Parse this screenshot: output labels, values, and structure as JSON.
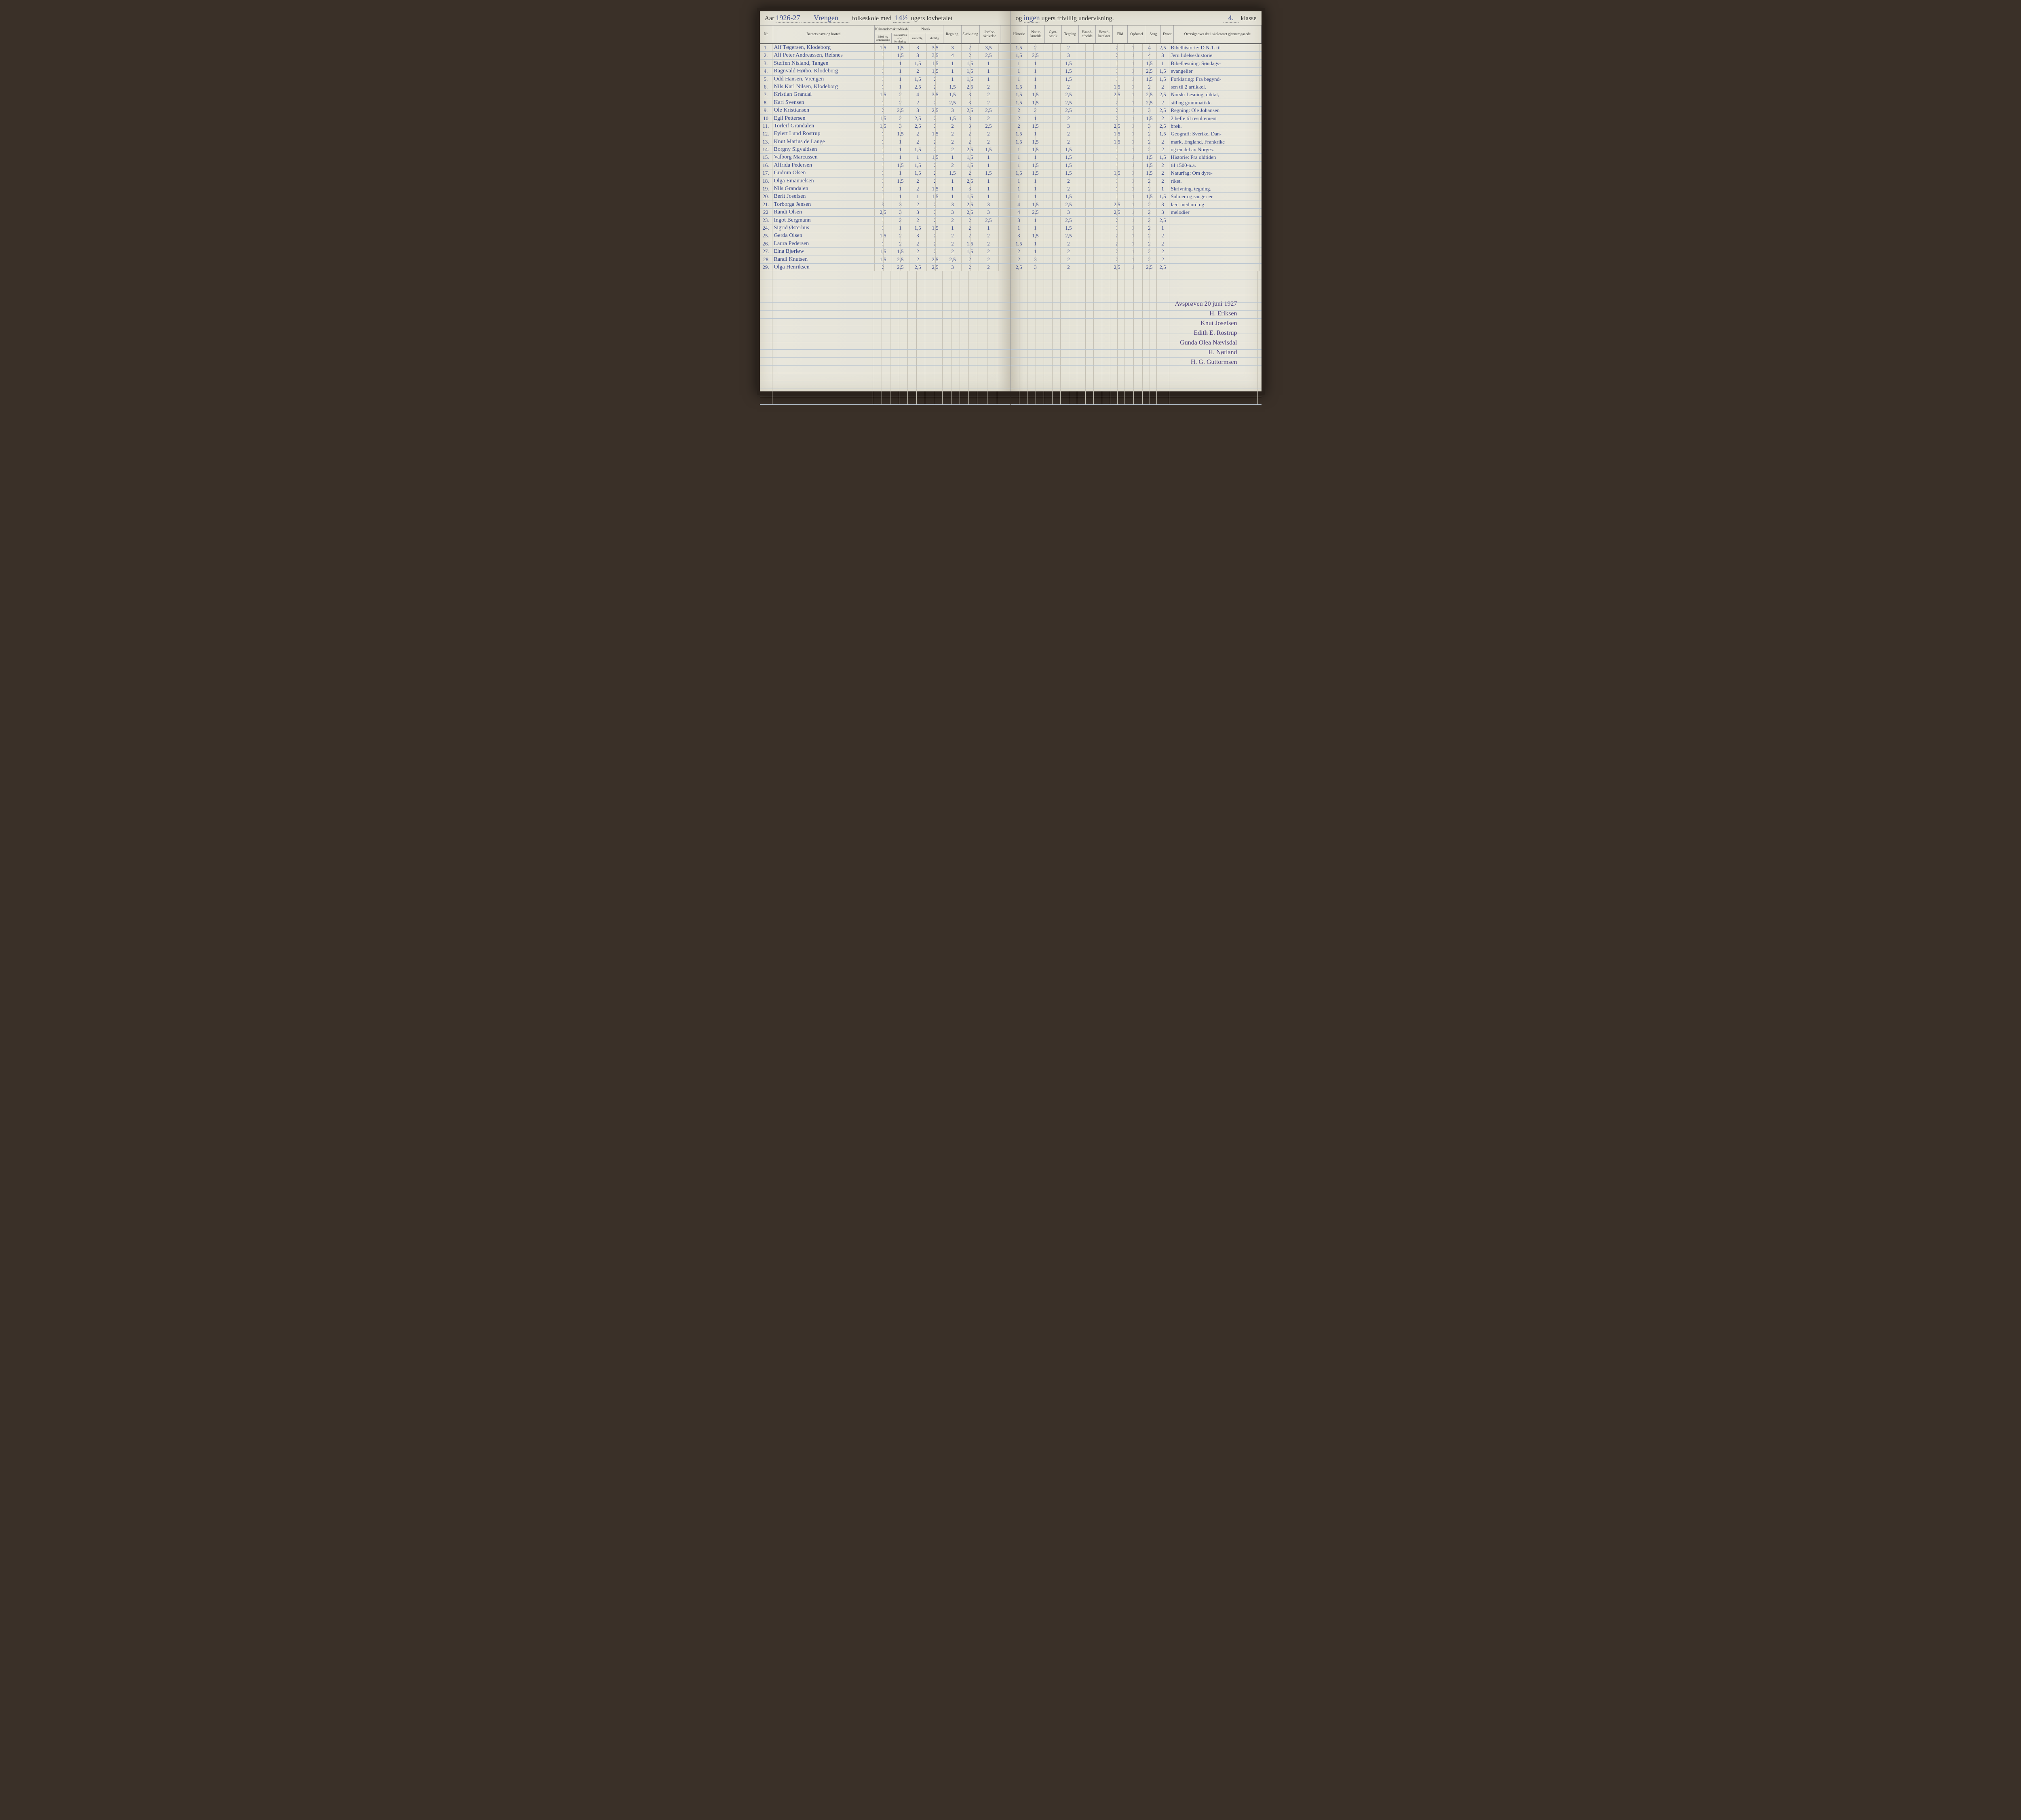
{
  "title": {
    "year": "1926-27",
    "school_name": "Vrengen",
    "printed_1": "Aar",
    "printed_2": "folkeskole med",
    "weeks_mandatory": "14½",
    "printed_3": "ugers lovbefalet",
    "printed_4": "og",
    "weeks_voluntary": "ingen",
    "printed_5": "ugers frivillig undervisning.",
    "class": "4.",
    "printed_6": "klasse"
  },
  "columns_left": {
    "nr": "Nr.",
    "name": "Barnets navn og bosted",
    "kristen_group": "Kristendomskundskab",
    "kristen_a": "Bibel- og kirkehistorie",
    "kristen_b": "Katekismus eller forklaring",
    "norsk_group": "Norsk",
    "norsk_a": "mundtlig",
    "norsk_b": "skriftlig",
    "regning": "Regning",
    "skriv": "Skriv-ning",
    "jord": "Jordbe-skrivelse"
  },
  "columns_right": {
    "historie": "Historie",
    "natur": "Natur-kundsk.",
    "gym": "Gym-nastik",
    "tegning": "Tegning",
    "haand": "Haand-arbeide",
    "hoved": "Hoved-karakter",
    "flid": "Flid",
    "opforsel": "Opførsel",
    "sang": "Sang",
    "evner": "Evner",
    "oversigt": "Oversigt over det i skoleaaret gjennemgaaede"
  },
  "rows": [
    {
      "nr": "1.",
      "name": "Alf Tøgersen, Klodeborg",
      "k1": "1,5",
      "k2": "1,5",
      "n1": "3",
      "n2": "3,5",
      "reg": "3",
      "skr": "2",
      "jord": "3,5",
      "hist": "1,5",
      "nat": "2",
      "gym": "",
      "teg": "2",
      "haa": "",
      "hov": "",
      "flid": "2",
      "opf": "1",
      "sang": "4",
      "evn": "2,5",
      "note": "Bibelhistorie: D.N.T. til"
    },
    {
      "nr": "2.",
      "name": "Alf Peter Andreassen, Refsnes",
      "k1": "1",
      "k2": "1,5",
      "n1": "3",
      "n2": "3,5",
      "reg": "4",
      "skr": "2",
      "jord": "2,5",
      "hist": "1,5",
      "nat": "2,5",
      "gym": "",
      "teg": "3",
      "haa": "",
      "hov": "",
      "flid": "2",
      "opf": "1",
      "sang": "4",
      "evn": "3",
      "note": "Jeru lidelseshistorie"
    },
    {
      "nr": "3.",
      "name": "Steffen Nisland, Tangen",
      "k1": "1",
      "k2": "1",
      "n1": "1,5",
      "n2": "1,5",
      "reg": "1",
      "skr": "1,5",
      "jord": "1",
      "hist": "1",
      "nat": "1",
      "gym": "",
      "teg": "1,5",
      "haa": "",
      "hov": "",
      "flid": "1",
      "opf": "1",
      "sang": "1,5",
      "evn": "1",
      "note": "Bibellæsning: Søndags-"
    },
    {
      "nr": "4.",
      "name": "Ragnvald Høibo, Klodeborg",
      "k1": "1",
      "k2": "1",
      "n1": "2",
      "n2": "1,5",
      "reg": "1",
      "skr": "1,5",
      "jord": "1",
      "hist": "1",
      "nat": "1",
      "gym": "",
      "teg": "1,5",
      "haa": "",
      "hov": "",
      "flid": "1",
      "opf": "1",
      "sang": "2,5",
      "evn": "1,5",
      "note": "evangelier"
    },
    {
      "nr": "5.",
      "name": "Odd Hansen, Vrengen",
      "k1": "1",
      "k2": "1",
      "n1": "1,5",
      "n2": "2",
      "reg": "1",
      "skr": "1,5",
      "jord": "1",
      "hist": "1",
      "nat": "1",
      "gym": "",
      "teg": "1,5",
      "haa": "",
      "hov": "",
      "flid": "1",
      "opf": "1",
      "sang": "1,5",
      "evn": "1,5",
      "note": "Forklaring: Fra begynd-"
    },
    {
      "nr": "6.",
      "name": "Nils Karl Nilsen, Klodeborg",
      "k1": "1",
      "k2": "1",
      "n1": "2,5",
      "n2": "2",
      "reg": "1,5",
      "skr": "2,5",
      "jord": "2",
      "hist": "1,5",
      "nat": "1",
      "gym": "",
      "teg": "2",
      "haa": "",
      "hov": "",
      "flid": "1,5",
      "opf": "1",
      "sang": "2",
      "evn": "2",
      "note": "sen til 2 artikkel."
    },
    {
      "nr": "7.",
      "name": "Kristian Grandal",
      "k1": "1,5",
      "k2": "2",
      "n1": "4",
      "n2": "3,5",
      "reg": "1,5",
      "skr": "3",
      "jord": "2",
      "hist": "1,5",
      "nat": "1,5",
      "gym": "",
      "teg": "2,5",
      "haa": "",
      "hov": "",
      "flid": "2,5",
      "opf": "1",
      "sang": "2,5",
      "evn": "2,5",
      "note": "Norsk: Lesning, diktat,"
    },
    {
      "nr": "8.",
      "name": "Karl Svensen",
      "k1": "1",
      "k2": "2",
      "n1": "2",
      "n2": "2",
      "reg": "2,5",
      "skr": "3",
      "jord": "2",
      "hist": "1,5",
      "nat": "1,5",
      "gym": "",
      "teg": "2,5",
      "haa": "",
      "hov": "",
      "flid": "2",
      "opf": "1",
      "sang": "2,5",
      "evn": "2",
      "note": "stil og grammatikk."
    },
    {
      "nr": "9.",
      "name": "Ole Kristiansen",
      "k1": "2",
      "k2": "2,5",
      "n1": "3",
      "n2": "2,5",
      "reg": "3",
      "skr": "2,5",
      "jord": "2,5",
      "hist": "2",
      "nat": "2",
      "gym": "",
      "teg": "2,5",
      "haa": "",
      "hov": "",
      "flid": "2",
      "opf": "1",
      "sang": "3",
      "evn": "2,5",
      "note": "Regning: Ole Johansen"
    },
    {
      "nr": "10",
      "name": "Egil Pettersen",
      "k1": "1,5",
      "k2": "2",
      "n1": "2,5",
      "n2": "2",
      "reg": "1,5",
      "skr": "3",
      "jord": "2",
      "hist": "2",
      "nat": "1",
      "gym": "",
      "teg": "2",
      "haa": "",
      "hov": "",
      "flid": "2",
      "opf": "1",
      "sang": "1,5",
      "evn": "2",
      "note": "2 hefte til resultement"
    },
    {
      "nr": "11.",
      "name": "Torleif Grandalen",
      "k1": "1,5",
      "k2": "3",
      "n1": "2,5",
      "n2": "3",
      "reg": "2",
      "skr": "3",
      "jord": "2,5",
      "hist": "2",
      "nat": "1,5",
      "gym": "",
      "teg": "3",
      "haa": "",
      "hov": "",
      "flid": "2,5",
      "opf": "1",
      "sang": "3",
      "evn": "2,5",
      "note": "brøk."
    },
    {
      "nr": "12.",
      "name": "Eylert Lund Rostrup",
      "k1": "1",
      "k2": "1,5",
      "n1": "2",
      "n2": "1,5",
      "reg": "2",
      "skr": "2",
      "jord": "2",
      "hist": "1,5",
      "nat": "1",
      "gym": "",
      "teg": "2",
      "haa": "",
      "hov": "",
      "flid": "1,5",
      "opf": "1",
      "sang": "2",
      "evn": "1,5",
      "note": "Geografi: Sverike, Dan-"
    },
    {
      "nr": "13.",
      "name": "Knut Marius de Lange",
      "k1": "1",
      "k2": "1",
      "n1": "2",
      "n2": "2",
      "reg": "2",
      "skr": "2",
      "jord": "2",
      "hist": "1,5",
      "nat": "1,5",
      "gym": "",
      "teg": "2",
      "haa": "",
      "hov": "",
      "flid": "1,5",
      "opf": "1",
      "sang": "2",
      "evn": "2",
      "note": "mark, England, Frankrike"
    },
    {
      "nr": "14.",
      "name": "Borgny Sigvaldsen",
      "k1": "1",
      "k2": "1",
      "n1": "1,5",
      "n2": "2",
      "reg": "2",
      "skr": "2,5",
      "jord": "1,5",
      "hist": "1",
      "nat": "1,5",
      "gym": "",
      "teg": "1,5",
      "haa": "",
      "hov": "",
      "flid": "1",
      "opf": "1",
      "sang": "2",
      "evn": "2",
      "note": "og en del av Norges."
    },
    {
      "nr": "15.",
      "name": "Valborg Marcussen",
      "k1": "1",
      "k2": "1",
      "n1": "1",
      "n2": "1,5",
      "reg": "1",
      "skr": "1,5",
      "jord": "1",
      "hist": "1",
      "nat": "1",
      "gym": "",
      "teg": "1,5",
      "haa": "",
      "hov": "",
      "flid": "1",
      "opf": "1",
      "sang": "1,5",
      "evn": "1,5",
      "note": "Historie: Fra oldtiden"
    },
    {
      "nr": "16.",
      "name": "Alfrida Pedersen",
      "k1": "1",
      "k2": "1,5",
      "n1": "1,5",
      "n2": "2",
      "reg": "2",
      "skr": "1,5",
      "jord": "1",
      "hist": "1",
      "nat": "1,5",
      "gym": "",
      "teg": "1,5",
      "haa": "",
      "hov": "",
      "flid": "1",
      "opf": "1",
      "sang": "1,5",
      "evn": "2",
      "note": "til 1500-a.a."
    },
    {
      "nr": "17.",
      "name": "Gudrun Olsen",
      "k1": "1",
      "k2": "1",
      "n1": "1,5",
      "n2": "2",
      "reg": "1,5",
      "skr": "2",
      "jord": "1,5",
      "hist": "1,5",
      "nat": "1,5",
      "gym": "",
      "teg": "1,5",
      "haa": "",
      "hov": "",
      "flid": "1,5",
      "opf": "1",
      "sang": "1,5",
      "evn": "2",
      "note": "Naturfag: Om dyre-"
    },
    {
      "nr": "18.",
      "name": "Olga Emanuelsen",
      "k1": "1",
      "k2": "1,5",
      "n1": "2",
      "n2": "2",
      "reg": "1",
      "skr": "2,5",
      "jord": "1",
      "hist": "1",
      "nat": "1",
      "gym": "",
      "teg": "2",
      "haa": "",
      "hov": "",
      "flid": "1",
      "opf": "1",
      "sang": "2",
      "evn": "2",
      "note": "riket."
    },
    {
      "nr": "19.",
      "name": "Nils Grandalen",
      "k1": "1",
      "k2": "1",
      "n1": "2",
      "n2": "1,5",
      "reg": "1",
      "skr": "3",
      "jord": "1",
      "hist": "1",
      "nat": "1",
      "gym": "",
      "teg": "2",
      "haa": "",
      "hov": "",
      "flid": "1",
      "opf": "1",
      "sang": "2",
      "evn": "1",
      "note": "Skrivning, tegning."
    },
    {
      "nr": "20.",
      "name": "Berit Josefsen",
      "k1": "1",
      "k2": "1",
      "n1": "1",
      "n2": "1,5",
      "reg": "1",
      "skr": "1,5",
      "jord": "1",
      "hist": "1",
      "nat": "1",
      "gym": "",
      "teg": "1,5",
      "haa": "",
      "hov": "",
      "flid": "1",
      "opf": "1",
      "sang": "1,5",
      "evn": "1,5",
      "note": "Salmer og sanger er"
    },
    {
      "nr": "21.",
      "name": "Torborga Jensen",
      "k1": "3",
      "k2": "3",
      "n1": "2",
      "n2": "2",
      "reg": "3",
      "skr": "2,5",
      "jord": "3",
      "hist": "4",
      "nat": "1,5",
      "gym": "",
      "teg": "2,5",
      "haa": "",
      "hov": "",
      "flid": "2,5",
      "opf": "1",
      "sang": "2",
      "evn": "3",
      "note": "lært med ord og"
    },
    {
      "nr": "22",
      "name": "Randi Olsen",
      "k1": "2,5",
      "k2": "3",
      "n1": "3",
      "n2": "3",
      "reg": "3",
      "skr": "2,5",
      "jord": "3",
      "hist": "4",
      "nat": "2,5",
      "gym": "",
      "teg": "3",
      "haa": "",
      "hov": "",
      "flid": "2,5",
      "opf": "1",
      "sang": "2",
      "evn": "3",
      "note": "melodier"
    },
    {
      "nr": "23.",
      "name": "Ingot Bergmann",
      "k1": "1",
      "k2": "2",
      "n1": "2",
      "n2": "2",
      "reg": "2",
      "skr": "2",
      "jord": "2,5",
      "hist": "3",
      "nat": "1",
      "gym": "",
      "teg": "2,5",
      "haa": "",
      "hov": "",
      "flid": "2",
      "opf": "1",
      "sang": "2",
      "evn": "2,5",
      "note": ""
    },
    {
      "nr": "24.",
      "name": "Sigrid Østerhus",
      "k1": "1",
      "k2": "1",
      "n1": "1,5",
      "n2": "1,5",
      "reg": "1",
      "skr": "2",
      "jord": "1",
      "hist": "1",
      "nat": "1",
      "gym": "",
      "teg": "1,5",
      "haa": "",
      "hov": "",
      "flid": "1",
      "opf": "1",
      "sang": "2",
      "evn": "1",
      "note": ""
    },
    {
      "nr": "25.",
      "name": "Gerda Olsen",
      "k1": "1,5",
      "k2": "2",
      "n1": "3",
      "n2": "2",
      "reg": "2",
      "skr": "2",
      "jord": "2",
      "hist": "3",
      "nat": "1,5",
      "gym": "",
      "teg": "2,5",
      "haa": "",
      "hov": "",
      "flid": "2",
      "opf": "1",
      "sang": "2",
      "evn": "2",
      "note": ""
    },
    {
      "nr": "26.",
      "name": "Laura Pedersen",
      "k1": "1",
      "k2": "2",
      "n1": "2",
      "n2": "2",
      "reg": "2",
      "skr": "1,5",
      "jord": "2",
      "hist": "1,5",
      "nat": "1",
      "gym": "",
      "teg": "2",
      "haa": "",
      "hov": "",
      "flid": "2",
      "opf": "1",
      "sang": "2",
      "evn": "2",
      "note": ""
    },
    {
      "nr": "27.",
      "name": "Elna Bjørløw",
      "k1": "1,5",
      "k2": "1,5",
      "n1": "2",
      "n2": "2",
      "reg": "2",
      "skr": "1,5",
      "jord": "2",
      "hist": "2",
      "nat": "1",
      "gym": "",
      "teg": "2",
      "haa": "",
      "hov": "",
      "flid": "2",
      "opf": "1",
      "sang": "2",
      "evn": "2",
      "note": ""
    },
    {
      "nr": "28",
      "name": "Randi Knutsen",
      "k1": "1,5",
      "k2": "2,5",
      "n1": "2",
      "n2": "2,5",
      "reg": "2,5",
      "skr": "2",
      "jord": "2",
      "hist": "2",
      "nat": "3",
      "gym": "",
      "teg": "2",
      "haa": "",
      "hov": "",
      "flid": "2",
      "opf": "1",
      "sang": "2",
      "evn": "2",
      "note": ""
    },
    {
      "nr": "29.",
      "name": "Olga Henriksen",
      "k1": "2",
      "k2": "2,5",
      "n1": "2,5",
      "n2": "2,5",
      "reg": "3",
      "skr": "2",
      "jord": "2",
      "hist": "2,5",
      "nat": "3",
      "gym": "",
      "teg": "2",
      "haa": "",
      "hov": "",
      "flid": "2,5",
      "opf": "1",
      "sang": "2,5",
      "evn": "2,5",
      "note": ""
    }
  ],
  "signatures": {
    "date": "Avsprøven 20 juni 1927",
    "s1": "H. Eriksen",
    "s2": "Knut Josefsen",
    "s3": "Edith E. Rostrup",
    "s4": "Gunda Olea Nævisdal",
    "s5": "H. Nøtland",
    "s6": "H. G. Guttormsen"
  },
  "layout": {
    "left_widths": {
      "nr": 30,
      "name": 248,
      "k1": 42,
      "k2": 42,
      "n1": 42,
      "n2": 42,
      "reg": 42,
      "skr": 42,
      "jord": 48
    },
    "right_widths": {
      "hist": 40,
      "nat": 40,
      "gym": 40,
      "teg": 40,
      "haa": 40,
      "hov": 40,
      "flid": 34,
      "opf": 44,
      "sang": 34,
      "evn": 30,
      "note": 218
    },
    "blank_rows": 17,
    "colors": {
      "ink": "#3b4a8a",
      "sig_ink": "#4a3d7a",
      "rule": "#b8c4d0",
      "border": "#aaa",
      "paper": "#e8e6dc"
    }
  }
}
